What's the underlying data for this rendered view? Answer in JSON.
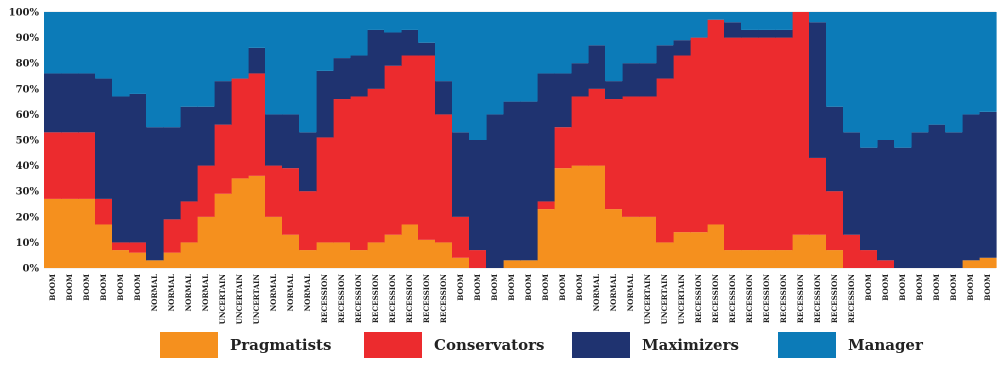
{
  "chart_data": {
    "type": "area",
    "stacked": true,
    "percent": true,
    "ylim": [
      0,
      100
    ],
    "yticks": [
      "0%",
      "10%",
      "20%",
      "30%",
      "40%",
      "50%",
      "60%",
      "70%",
      "80%",
      "90%",
      "100%"
    ],
    "categories": [
      "BOOM",
      "BOOM",
      "BOOM",
      "BOOM",
      "BOOM",
      "BOOM",
      "NORMAL",
      "NORMAL",
      "NORMAL",
      "NORMAL",
      "UNCERTAIN",
      "UNCERTAIN",
      "UNCERTAIN",
      "NORMAL",
      "NORMAL",
      "NORMAL",
      "RECESSION",
      "RECESSION",
      "RECESSION",
      "RECESSION",
      "RECESSION",
      "RECESSION",
      "RECESSION",
      "RECESSION",
      "BOOM",
      "BOOM",
      "BOOM",
      "BOOM",
      "BOOM",
      "BOOM",
      "BOOM",
      "BOOM",
      "NORMAL",
      "NORMAL",
      "NORMAL",
      "UNCERTAIN",
      "UNCERTAIN",
      "UNCERTAIN",
      "RECESSION",
      "RECESSION",
      "RECESSION",
      "RECESSION",
      "RECESSION",
      "RECESSION",
      "RECESSION",
      "RECESSION",
      "RECESSION",
      "RECESSION",
      "BOOM",
      "BOOM",
      "BOOM",
      "BOOM",
      "BOOM",
      "BOOM",
      "BOOM",
      "BOOM"
    ],
    "series": [
      {
        "name": "Pragmatists",
        "color": "#f5901e",
        "values": [
          27,
          27,
          27,
          17,
          7,
          6,
          3,
          6,
          10,
          20,
          29,
          35,
          36,
          20,
          13,
          7,
          10,
          10,
          7,
          10,
          13,
          17,
          11,
          10,
          4,
          0,
          0,
          3,
          3,
          23,
          39,
          40,
          40,
          23,
          20,
          20,
          10,
          14,
          14,
          17,
          7,
          7,
          7,
          7,
          13,
          13,
          7,
          0,
          0,
          0,
          0,
          0,
          0,
          0,
          3,
          4
        ]
      },
      {
        "name": "Conservators",
        "color": "#ec2b2e",
        "values": [
          26,
          26,
          26,
          10,
          3,
          4,
          0,
          13,
          16,
          20,
          27,
          39,
          40,
          20,
          26,
          23,
          41,
          56,
          60,
          60,
          66,
          66,
          72,
          50,
          16,
          7,
          0,
          0,
          0,
          3,
          16,
          27,
          30,
          43,
          47,
          47,
          64,
          69,
          76,
          80,
          83,
          83,
          83,
          83,
          87,
          30,
          23,
          13,
          7,
          3,
          0,
          0,
          0,
          0,
          0,
          0
        ]
      },
      {
        "name": "Maximizers",
        "color": "#1f3370",
        "values": [
          23,
          23,
          23,
          47,
          57,
          58,
          52,
          36,
          37,
          23,
          17,
          0,
          10,
          20,
          21,
          23,
          26,
          16,
          16,
          23,
          13,
          10,
          5,
          13,
          33,
          43,
          60,
          62,
          62,
          50,
          21,
          13,
          17,
          7,
          13,
          13,
          13,
          6,
          0,
          0,
          6,
          3,
          3,
          3,
          0,
          53,
          33,
          40,
          40,
          47,
          47,
          53,
          56,
          53,
          57,
          57
        ]
      },
      {
        "name": "Manager",
        "color": "#0c7bb8",
        "values": [
          24,
          24,
          24,
          26,
          33,
          32,
          45,
          45,
          37,
          37,
          27,
          26,
          14,
          40,
          40,
          47,
          23,
          18,
          17,
          7,
          8,
          7,
          12,
          27,
          47,
          50,
          40,
          35,
          35,
          24,
          24,
          20,
          13,
          27,
          20,
          20,
          13,
          11,
          10,
          3,
          4,
          7,
          7,
          7,
          0,
          4,
          37,
          47,
          53,
          50,
          53,
          47,
          44,
          47,
          40,
          39
        ]
      }
    ]
  }
}
